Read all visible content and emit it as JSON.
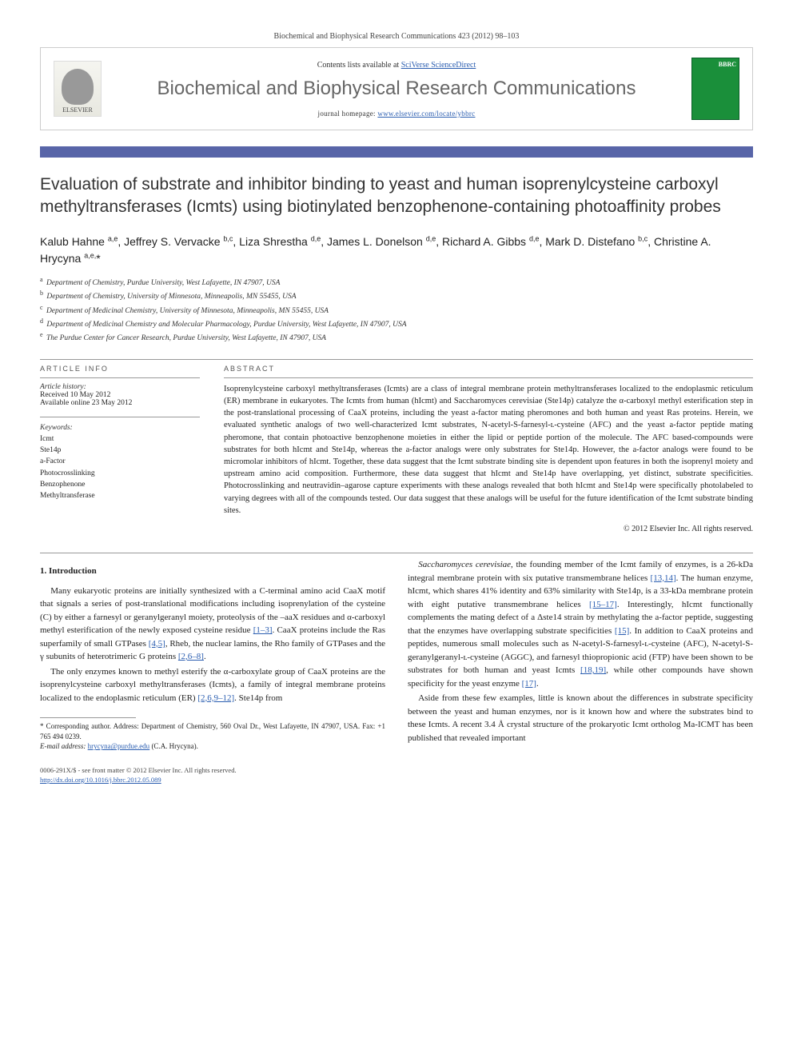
{
  "header_citation": "Biochemical and Biophysical Research Communications 423 (2012) 98–103",
  "banner": {
    "contents_prefix": "Contents lists available at ",
    "contents_link": "SciVerse ScienceDirect",
    "journal_title": "Biochemical and Biophysical Research Communications",
    "homepage_prefix": "journal homepage: ",
    "homepage_link": "www.elsevier.com/locate/ybbrc",
    "elsevier_label": "ELSEVIER",
    "cover_label": "BBRC"
  },
  "article": {
    "title": "Evaluation of substrate and inhibitor binding to yeast and human isoprenylcysteine carboxyl methyltransferases (Icmts) using biotinylated benzophenone-containing photoaffinity probes",
    "authors_html": "Kalub Hahne <sup>a,e</sup>, Jeffrey S. Vervacke <sup>b,c</sup>, Liza Shrestha <sup>d,e</sup>, James L. Donelson <sup>d,e</sup>, Richard A. Gibbs <sup>d,e</sup>, Mark D. Distefano <sup>b,c</sup>, Christine A. Hrycyna <sup>a,e,</sup>*",
    "affiliations": [
      {
        "sup": "a",
        "text": "Department of Chemistry, Purdue University, West Lafayette, IN 47907, USA"
      },
      {
        "sup": "b",
        "text": "Department of Chemistry, University of Minnesota, Minneapolis, MN 55455, USA"
      },
      {
        "sup": "c",
        "text": "Department of Medicinal Chemistry, University of Minnesota, Minneapolis, MN 55455, USA"
      },
      {
        "sup": "d",
        "text": "Department of Medicinal Chemistry and Molecular Pharmacology, Purdue University, West Lafayette, IN 47907, USA"
      },
      {
        "sup": "e",
        "text": "The Purdue Center for Cancer Research, Purdue University, West Lafayette, IN 47907, USA"
      }
    ]
  },
  "info": {
    "heading": "ARTICLE INFO",
    "history_label": "Article history:",
    "received": "Received 10 May 2012",
    "online": "Available online 23 May 2012",
    "keywords_label": "Keywords:",
    "keywords": [
      "Icmt",
      "Ste14p",
      "a-Factor",
      "Photocrosslinking",
      "Benzophenone",
      "Methyltransferase"
    ]
  },
  "abstract": {
    "heading": "ABSTRACT",
    "text": "Isoprenylcysteine carboxyl methyltransferases (Icmts) are a class of integral membrane protein methyltransferases localized to the endoplasmic reticulum (ER) membrane in eukaryotes. The Icmts from human (hIcmt) and Saccharomyces cerevisiae (Ste14p) catalyze the α-carboxyl methyl esterification step in the post-translational processing of CaaX proteins, including the yeast a-factor mating pheromones and both human and yeast Ras proteins. Herein, we evaluated synthetic analogs of two well-characterized Icmt substrates, N-acetyl-S-farnesyl-ʟ-cysteine (AFC) and the yeast a-factor peptide mating pheromone, that contain photoactive benzophenone moieties in either the lipid or peptide portion of the molecule. The AFC based-compounds were substrates for both hIcmt and Ste14p, whereas the a-factor analogs were only substrates for Ste14p. However, the a-factor analogs were found to be micromolar inhibitors of hIcmt. Together, these data suggest that the Icmt substrate binding site is dependent upon features in both the isoprenyl moiety and upstream amino acid composition. Furthermore, these data suggest that hIcmt and Ste14p have overlapping, yet distinct, substrate specificities. Photocrosslinking and neutravidin–agarose capture experiments with these analogs revealed that both hIcmt and Ste14p were specifically photolabeled to varying degrees with all of the compounds tested. Our data suggest that these analogs will be useful for the future identification of the Icmt substrate binding sites.",
    "copyright": "© 2012 Elsevier Inc. All rights reserved."
  },
  "body": {
    "intro_heading": "1. Introduction",
    "p1": "Many eukaryotic proteins are initially synthesized with a C-terminal amino acid CaaX motif that signals a series of post-translational modifications including isoprenylation of the cysteine (C) by either a farnesyl or geranylgeranyl moiety, proteolysis of the –aaX residues and α-carboxyl methyl esterification of the newly exposed cysteine residue [1–3]. CaaX proteins include the Ras superfamily of small GTPases [4,5], Rheb, the nuclear lamins, the Rho family of GTPases and the γ subunits of heterotrimeric G proteins [2,6–8].",
    "p2": "The only enzymes known to methyl esterify the α-carboxylate group of CaaX proteins are the isoprenylcysteine carboxyl methyltransferases (Icmts), a family of integral membrane proteins localized to the endoplasmic reticulum (ER) [2,6,9–12]. Ste14p from",
    "p3": "Saccharomyces cerevisiae, the founding member of the Icmt family of enzymes, is a 26-kDa integral membrane protein with six putative transmembrane helices [13,14]. The human enzyme, hIcmt, which shares 41% identity and 63% similarity with Ste14p, is a 33-kDa membrane protein with eight putative transmembrane helices [15–17]. Interestingly, hIcmt functionally complements the mating defect of a Δste14 strain by methylating the a-factor peptide, suggesting that the enzymes have overlapping substrate specificities [15]. In addition to CaaX proteins and peptides, numerous small molecules such as N-acetyl-S-farnesyl-ʟ-cysteine (AFC), N-acetyl-S-geranylgeranyl-ʟ-cysteine (AGGC), and farnesyl thiopropionic acid (FTP) have been shown to be substrates for both human and yeast Icmts [18,19], while other compounds have shown specificity for the yeast enzyme [17].",
    "p4": "Aside from these few examples, little is known about the differences in substrate specificity between the yeast and human enzymes, nor is it known how and where the substrates bind to these Icmts. A recent 3.4 Å crystal structure of the prokaryotic Icmt ortholog Ma-ICMT has been published that revealed important"
  },
  "footnotes": {
    "corresponding": "* Corresponding author. Address: Department of Chemistry, 560 Oval Dr., West Lafayette, IN 47907, USA. Fax: +1 765 494 0239.",
    "email_label": "E-mail address:",
    "email": "hrycyna@purdue.edu",
    "email_suffix": "(C.A. Hrycyna)."
  },
  "footer": {
    "line1": "0006-291X/$ - see front matter © 2012 Elsevier Inc. All rights reserved.",
    "doi": "http://dx.doi.org/10.1016/j.bbrc.2012.05.089"
  },
  "colors": {
    "bar": "#5865a8",
    "link": "#2a5db0",
    "cover": "#1a8f3a"
  }
}
